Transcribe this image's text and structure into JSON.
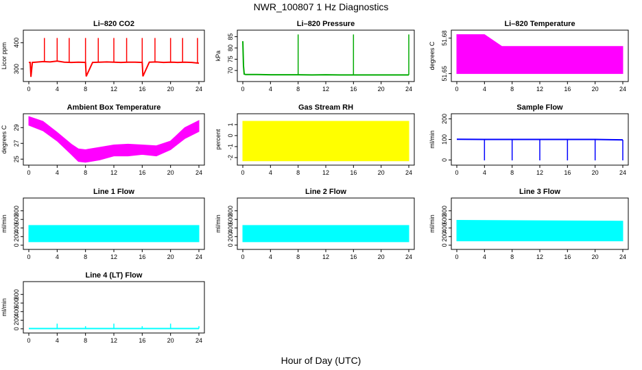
{
  "figure": {
    "title": "NWR_100807  1 Hz Diagnostics",
    "xlabel": "Hour of Day (UTC)"
  },
  "chart_data": [
    {
      "type": "line",
      "title": "Li–820 CO2",
      "ylabel": "Licor ppm",
      "color": "#ff0000",
      "xlim": [
        0,
        24
      ],
      "xticks": [
        0,
        4,
        8,
        12,
        16,
        20,
        24
      ],
      "ylim": [
        260,
        440
      ],
      "yticks": [
        300,
        400
      ],
      "series": [
        {
          "x": [
            0,
            0.2,
            0.3,
            0.5,
            1,
            2,
            3,
            4,
            5,
            6,
            7,
            8,
            8.1,
            9,
            10,
            11,
            12,
            13,
            14,
            15,
            16,
            16.1,
            17,
            18,
            19,
            20,
            21,
            22,
            23,
            24
          ],
          "y": [
            325,
            325,
            270,
            325,
            326,
            328,
            327,
            330,
            326,
            325,
            326,
            325,
            272,
            325,
            326,
            327,
            326,
            325,
            326,
            326,
            325,
            272,
            326,
            327,
            325,
            326,
            325,
            326,
            325,
            322
          ]
        }
      ],
      "spikes": {
        "x": [
          2.2,
          4.0,
          5.7,
          8.0,
          9.8,
          12.0,
          13.8,
          16.0,
          17.8,
          20.0,
          21.7,
          23.8
        ],
        "to": [
          418,
          418,
          418,
          418,
          418,
          418,
          418,
          418,
          418,
          418,
          418,
          418
        ]
      }
    },
    {
      "type": "line",
      "title": "Li–820 Pressure",
      "ylabel": "kPa",
      "color": "#00aa00",
      "xlim": [
        0,
        24
      ],
      "xticks": [
        0,
        4,
        8,
        12,
        16,
        20,
        24
      ],
      "ylim": [
        66,
        87
      ],
      "yticks": [
        70,
        75,
        80,
        85
      ],
      "series": [
        {
          "x": [
            0,
            0.1,
            0.2,
            0.4,
            2,
            4,
            6,
            8,
            10,
            12,
            14,
            16,
            18,
            20,
            22,
            24
          ],
          "y": [
            83,
            72,
            68.4,
            68.2,
            68.2,
            68.1,
            68.1,
            68.1,
            68.0,
            68.1,
            68.0,
            68.0,
            68.0,
            68.0,
            68.0,
            68.0
          ]
        }
      ],
      "spikes": {
        "x": [
          8.0,
          16.0,
          24.0
        ],
        "to": [
          86,
          86,
          86
        ]
      }
    },
    {
      "type": "area",
      "title": "Li–820 Temperature",
      "ylabel": "degrees C",
      "color": "#ff00ff",
      "xlim": [
        0,
        24
      ],
      "xticks": [
        0,
        4,
        8,
        12,
        16,
        20,
        24
      ],
      "ylim": [
        51.645,
        51.685
      ],
      "yticks": [
        51.65,
        51.68
      ],
      "series": [
        {
          "x": [
            0,
            4,
            6.5,
            24
          ],
          "y_low": [
            51.65,
            51.65,
            51.65,
            51.65
          ],
          "y_high": [
            51.683,
            51.683,
            51.673,
            51.673
          ]
        }
      ]
    },
    {
      "type": "area",
      "title": "Ambient Box Temperature",
      "ylabel": "degrees C",
      "color": "#ff00ff",
      "xlim": [
        0,
        24
      ],
      "xticks": [
        0,
        4,
        8,
        12,
        16,
        20,
        24
      ],
      "ylim": [
        24.5,
        30.5
      ],
      "yticks": [
        25,
        27,
        29
      ],
      "series": [
        {
          "x": [
            0,
            2,
            4,
            6,
            7,
            8,
            10,
            12,
            14,
            16,
            18,
            20,
            22,
            24
          ],
          "y_low": [
            29.3,
            28.6,
            27.3,
            25.6,
            24.7,
            24.6,
            24.9,
            25.4,
            25.4,
            25.6,
            25.4,
            26.2,
            27.6,
            28.5
          ],
          "y_high": [
            30.4,
            29.8,
            28.4,
            26.9,
            26.3,
            26.2,
            26.5,
            26.8,
            26.9,
            26.8,
            26.7,
            27.3,
            29.0,
            29.9
          ]
        }
      ]
    },
    {
      "type": "area",
      "title": "Gas Stream RH",
      "ylabel": "percent",
      "color": "#ffff00",
      "xlim": [
        0,
        24
      ],
      "xticks": [
        0,
        4,
        8,
        12,
        16,
        20,
        24
      ],
      "ylim": [
        -2.5,
        1.8
      ],
      "yticks": [
        -2,
        -1,
        0,
        1
      ],
      "series": [
        {
          "x": [
            0,
            24
          ],
          "y_low": [
            -2.3,
            -2.3
          ],
          "y_high": [
            1.3,
            1.3
          ]
        }
      ]
    },
    {
      "type": "line",
      "title": "Sample Flow",
      "ylabel": "ml/min",
      "color": "#0000ff",
      "xlim": [
        0,
        24
      ],
      "xticks": [
        0,
        4,
        8,
        12,
        16,
        20,
        24
      ],
      "ylim": [
        -15,
        215
      ],
      "yticks": [
        0,
        100,
        200
      ],
      "series": [
        {
          "x": [
            0,
            4,
            8,
            12,
            16,
            20,
            24
          ],
          "y": [
            101,
            100,
            100,
            100,
            100,
            100,
            98
          ]
        }
      ],
      "spikes": {
        "x": [
          4.0,
          8.0,
          12.0,
          16.0,
          20.0,
          24.0
        ],
        "to": [
          -2,
          -2,
          -2,
          -2,
          -2,
          -2
        ]
      }
    },
    {
      "type": "area",
      "title": "Line 1 Flow",
      "ylabel": "ml/min",
      "color": "#00ffff",
      "xlim": [
        0,
        24
      ],
      "xticks": [
        0,
        4,
        8,
        12,
        16,
        20,
        24
      ],
      "ylim": [
        -50,
        1050
      ],
      "yticks": [
        0,
        200,
        400,
        600,
        800
      ],
      "series": [
        {
          "x": [
            0,
            24
          ],
          "y_low": [
            80,
            80
          ],
          "y_high": [
            460,
            460
          ]
        }
      ]
    },
    {
      "type": "area",
      "title": "Line 2 Flow",
      "ylabel": "ml/min",
      "color": "#00ffff",
      "xlim": [
        0,
        24
      ],
      "xticks": [
        0,
        4,
        8,
        12,
        16,
        20,
        24
      ],
      "ylim": [
        -50,
        1050
      ],
      "yticks": [
        0,
        200,
        400,
        600,
        800
      ],
      "series": [
        {
          "x": [
            0,
            24
          ],
          "y_low": [
            80,
            80
          ],
          "y_high": [
            460,
            460
          ]
        }
      ]
    },
    {
      "type": "area",
      "title": "Line 3 Flow",
      "ylabel": "ml/min",
      "color": "#00ffff",
      "xlim": [
        0,
        24
      ],
      "xticks": [
        0,
        4,
        8,
        12,
        16,
        20,
        24
      ],
      "ylim": [
        -50,
        1050
      ],
      "yticks": [
        0,
        200,
        400,
        600,
        800
      ],
      "series": [
        {
          "x": [
            0,
            24
          ],
          "y_low": [
            100,
            100
          ],
          "y_high": [
            580,
            560
          ]
        }
      ]
    },
    {
      "type": "line",
      "title": "Line 4 (LT) Flow",
      "ylabel": "ml/min",
      "color": "#00ffff",
      "xlim": [
        0,
        24
      ],
      "xticks": [
        0,
        4,
        8,
        12,
        16,
        20,
        24
      ],
      "ylim": [
        -50,
        1050
      ],
      "yticks": [
        0,
        200,
        400,
        600,
        800
      ],
      "series": [
        {
          "x": [
            0,
            24
          ],
          "y": [
            5,
            5
          ]
        }
      ],
      "spikes": {
        "x": [
          4.0,
          8.0,
          12.0,
          16.0,
          20.0,
          24.0
        ],
        "to": [
          120,
          60,
          120,
          60,
          120,
          60
        ]
      }
    }
  ]
}
